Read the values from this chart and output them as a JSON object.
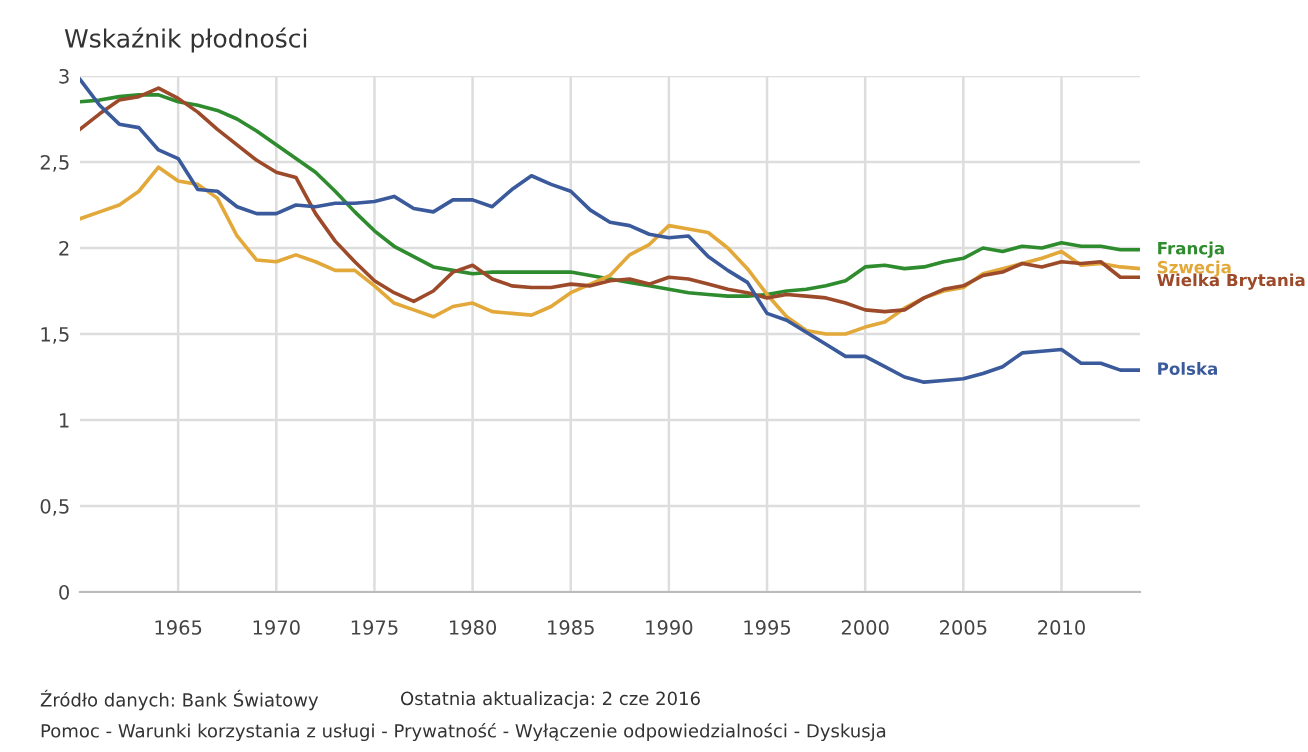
{
  "chart_data": {
    "type": "line",
    "title": "Wskaźnik płodności",
    "x": [
      1960,
      1961,
      1962,
      1963,
      1964,
      1965,
      1966,
      1967,
      1968,
      1969,
      1970,
      1971,
      1972,
      1973,
      1974,
      1975,
      1976,
      1977,
      1978,
      1979,
      1980,
      1981,
      1982,
      1983,
      1984,
      1985,
      1986,
      1987,
      1988,
      1989,
      1990,
      1991,
      1992,
      1993,
      1994,
      1995,
      1996,
      1997,
      1998,
      1999,
      2000,
      2001,
      2002,
      2003,
      2004,
      2005,
      2006,
      2007,
      2008,
      2009,
      2010,
      2011,
      2012,
      2013,
      2014
    ],
    "series": [
      {
        "name": "Francja",
        "color": "#2e8b2e",
        "values": [
          2.85,
          2.86,
          2.88,
          2.89,
          2.89,
          2.85,
          2.83,
          2.8,
          2.75,
          2.68,
          2.6,
          2.52,
          2.44,
          2.33,
          2.21,
          2.1,
          2.01,
          1.95,
          1.89,
          1.87,
          1.85,
          1.86,
          1.86,
          1.86,
          1.86,
          1.86,
          1.84,
          1.82,
          1.8,
          1.78,
          1.76,
          1.74,
          1.73,
          1.72,
          1.72,
          1.73,
          1.75,
          1.76,
          1.78,
          1.81,
          1.89,
          1.9,
          1.88,
          1.89,
          1.92,
          1.94,
          2.0,
          1.98,
          2.01,
          2.0,
          2.03,
          2.01,
          2.01,
          1.99,
          1.99
        ]
      },
      {
        "name": "Szwecja",
        "color": "#e3a83a",
        "values": [
          2.17,
          2.21,
          2.25,
          2.33,
          2.47,
          2.39,
          2.37,
          2.29,
          2.07,
          1.93,
          1.92,
          1.96,
          1.92,
          1.87,
          1.87,
          1.78,
          1.68,
          1.64,
          1.6,
          1.66,
          1.68,
          1.63,
          1.62,
          1.61,
          1.66,
          1.74,
          1.79,
          1.84,
          1.96,
          2.02,
          2.13,
          2.11,
          2.09,
          2.0,
          1.88,
          1.73,
          1.6,
          1.52,
          1.5,
          1.5,
          1.54,
          1.57,
          1.65,
          1.71,
          1.75,
          1.77,
          1.85,
          1.88,
          1.91,
          1.94,
          1.98,
          1.9,
          1.91,
          1.89,
          1.88
        ]
      },
      {
        "name": "Wielka Brytania",
        "color": "#9c4a2a",
        "values": [
          2.69,
          2.78,
          2.86,
          2.88,
          2.93,
          2.87,
          2.79,
          2.69,
          2.6,
          2.51,
          2.44,
          2.41,
          2.2,
          2.04,
          1.92,
          1.81,
          1.74,
          1.69,
          1.75,
          1.86,
          1.9,
          1.82,
          1.78,
          1.77,
          1.77,
          1.79,
          1.78,
          1.81,
          1.82,
          1.79,
          1.83,
          1.82,
          1.79,
          1.76,
          1.74,
          1.71,
          1.73,
          1.72,
          1.71,
          1.68,
          1.64,
          1.63,
          1.64,
          1.71,
          1.76,
          1.78,
          1.84,
          1.86,
          1.91,
          1.89,
          1.92,
          1.91,
          1.92,
          1.83,
          1.83
        ]
      },
      {
        "name": "Polska",
        "color": "#3a5a9c",
        "values": [
          2.98,
          2.83,
          2.72,
          2.7,
          2.57,
          2.52,
          2.34,
          2.33,
          2.24,
          2.2,
          2.2,
          2.25,
          2.24,
          2.26,
          2.26,
          2.27,
          2.3,
          2.23,
          2.21,
          2.28,
          2.28,
          2.24,
          2.34,
          2.42,
          2.37,
          2.33,
          2.22,
          2.15,
          2.13,
          2.08,
          2.06,
          2.07,
          1.95,
          1.87,
          1.8,
          1.62,
          1.58,
          1.51,
          1.44,
          1.37,
          1.37,
          1.31,
          1.25,
          1.22,
          1.23,
          1.24,
          1.27,
          1.31,
          1.39,
          1.4,
          1.41,
          1.33,
          1.33,
          1.29,
          1.29
        ]
      }
    ],
    "xlim": [
      1960,
      2014
    ],
    "xticks": [
      1965,
      1970,
      1975,
      1980,
      1985,
      1990,
      1995,
      2000,
      2005,
      2010
    ],
    "ylim": [
      0,
      3
    ],
    "yticks": [
      0,
      {
        "value": 0.5,
        "label": "0,5"
      },
      1,
      {
        "value": 1.5,
        "label": "1,5"
      },
      2,
      {
        "value": 2.5,
        "label": "2,5"
      },
      3
    ],
    "grid": true,
    "legend": false,
    "marker": "none",
    "line_style": "solid",
    "annotations": [
      "Źródło danych: Bank Światowy",
      "Ostatnia aktualizacja: 2 cze 2016",
      "Pomoc - Warunki korzystania z usługi - Prywatność - Wyłączenie odpowiedzialności - Dyskusja"
    ]
  }
}
